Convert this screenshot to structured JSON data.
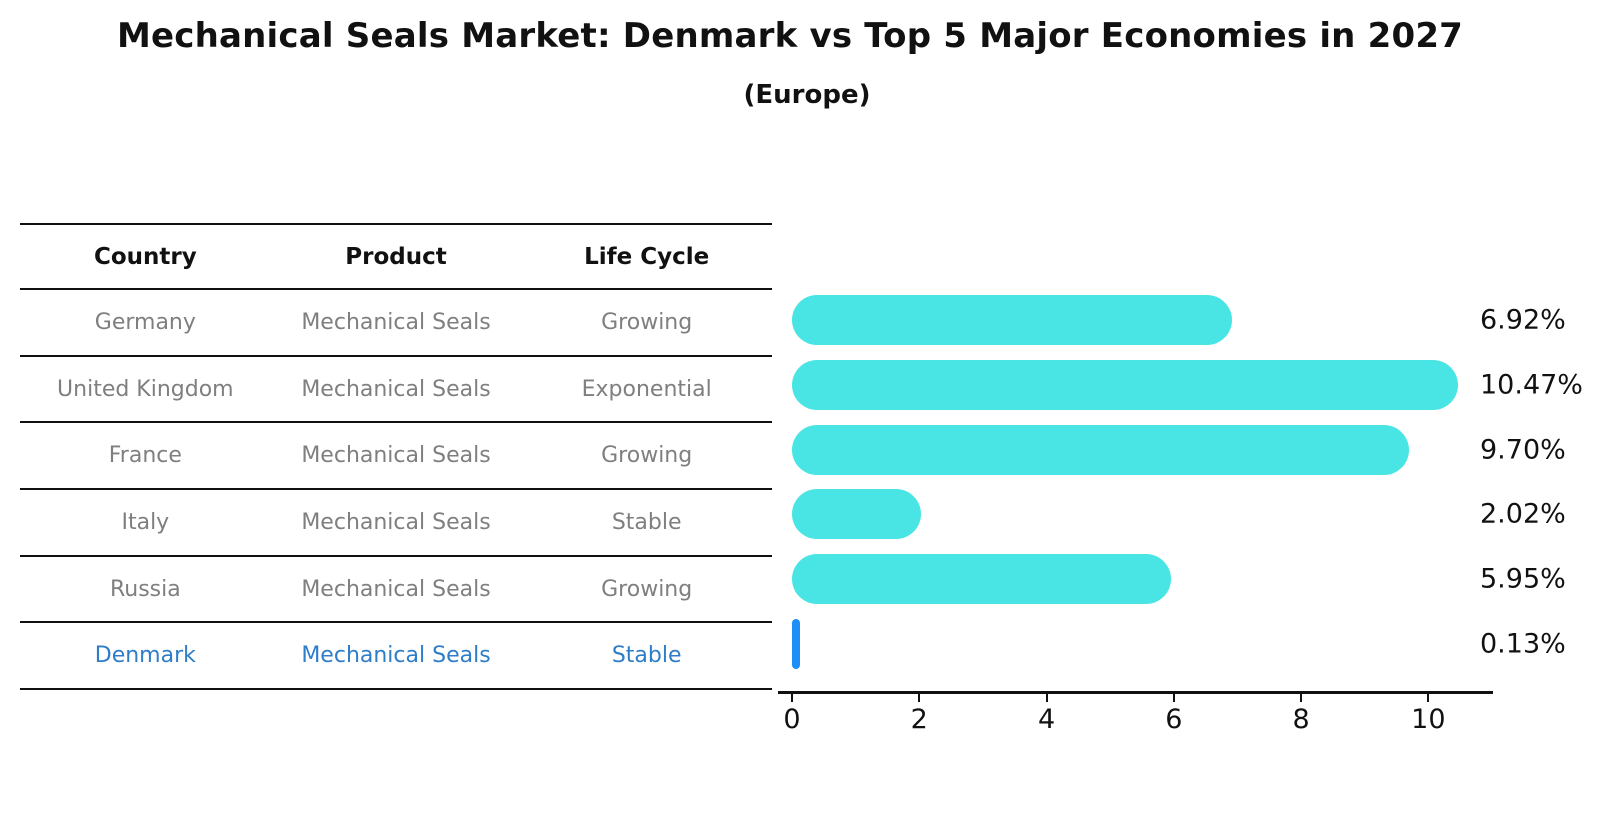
{
  "title": "Mechanical Seals Market: Denmark vs Top 5 Major Economies in 2027",
  "subtitle": "(Europe)",
  "table": {
    "headers": [
      "Country",
      "Product",
      "Life Cycle"
    ],
    "rows": [
      {
        "country": "Germany",
        "product": "Mechanical Seals",
        "life_cycle": "Growing",
        "highlighted": false
      },
      {
        "country": "United Kingdom",
        "product": "Mechanical Seals",
        "life_cycle": "Exponential",
        "highlighted": false
      },
      {
        "country": "France",
        "product": "Mechanical Seals",
        "life_cycle": "Growing",
        "highlighted": false
      },
      {
        "country": "Italy",
        "product": "Mechanical Seals",
        "life_cycle": "Stable",
        "highlighted": false
      },
      {
        "country": "Russia",
        "product": "Mechanical Seals",
        "life_cycle": "Growing",
        "highlighted": false
      },
      {
        "country": "Denmark",
        "product": "Mechanical Seals",
        "life_cycle": "Stable",
        "highlighted": true
      }
    ]
  },
  "chart_data": {
    "type": "bar",
    "orientation": "horizontal",
    "title": "Mechanical Seals Market: Denmark vs Top 5 Major Economies in 2027",
    "subtitle": "(Europe)",
    "categories": [
      "Germany",
      "United Kingdom",
      "France",
      "Italy",
      "Russia",
      "Denmark"
    ],
    "values": [
      6.92,
      10.47,
      9.7,
      2.02,
      5.95,
      0.13
    ],
    "value_labels": [
      "6.92%",
      "10.47%",
      "9.70%",
      "2.02%",
      "5.95%",
      "0.13%"
    ],
    "x_ticks": [
      0,
      2,
      4,
      6,
      8,
      10
    ],
    "xlim": [
      0,
      11
    ],
    "grid": false,
    "legend": false,
    "bar_color": "#48e5e4",
    "highlight_color": "#1e8ff7",
    "highlight_index": 5,
    "highlight_text_color": "#2d7dc8"
  }
}
